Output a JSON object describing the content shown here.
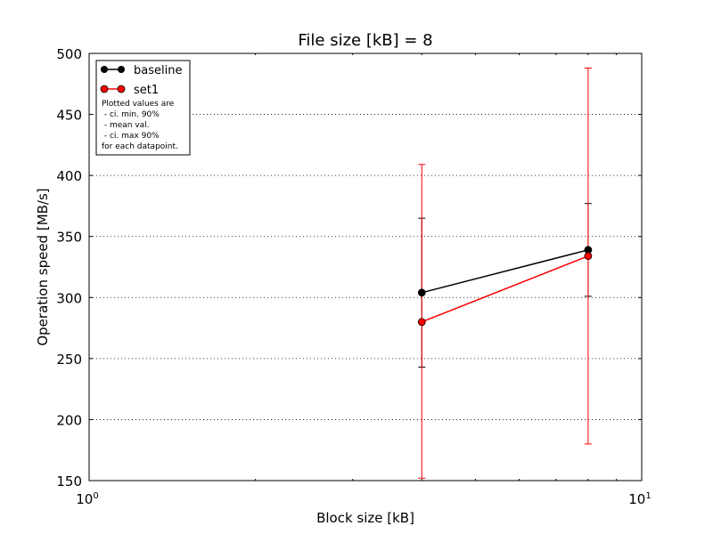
{
  "chart_data": {
    "type": "line",
    "title": "File size [kB] = 8",
    "xlabel": "Block size [kB]",
    "ylabel": "Operation speed [MB/s]",
    "xscale": "log",
    "xlim": [
      1,
      10
    ],
    "ylim": [
      150,
      500
    ],
    "x_major_ticks": [
      {
        "value": 1,
        "base": "10",
        "exp": "0"
      },
      {
        "value": 10,
        "base": "10",
        "exp": "1"
      }
    ],
    "y_ticks": [
      150,
      200,
      250,
      300,
      350,
      400,
      450,
      500
    ],
    "y_tick_labels": [
      "150",
      "200",
      "250",
      "300",
      "350",
      "400",
      "450",
      "500"
    ],
    "grid": "horizontal dotted",
    "legend_position": "top-left",
    "x": [
      4,
      8
    ],
    "series": [
      {
        "name": "baseline",
        "color": "#000000",
        "values": [
          304,
          339
        ],
        "ci_min": [
          243,
          301
        ],
        "ci_max": [
          365,
          377
        ]
      },
      {
        "name": "set1",
        "color": "#ff0000",
        "values": [
          280,
          334
        ],
        "ci_min": [
          152,
          180
        ],
        "ci_max": [
          409,
          488
        ]
      }
    ],
    "legend_note": [
      "Plotted values are",
      " - ci. min. 90%",
      " - mean val.",
      " - ci. max 90%",
      "for each datapoint."
    ]
  }
}
